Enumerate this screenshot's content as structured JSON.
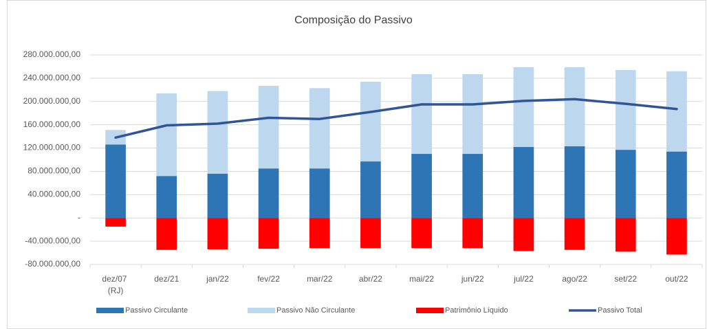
{
  "chart_data": {
    "type": "bar",
    "title": "Composição do Passivo",
    "categories": [
      "dez/07 (RJ)",
      "dez/21",
      "jan/22",
      "fev/22",
      "mar/22",
      "abr/22",
      "mai/22",
      "jun/22",
      "jul/22",
      "ago/22",
      "set/22",
      "out/22"
    ],
    "series": [
      {
        "name": "Passivo Circulante",
        "color": "#2e75b6",
        "type": "bar",
        "values": [
          126000000,
          72000000,
          76000000,
          85000000,
          85000000,
          97000000,
          110000000,
          110000000,
          122000000,
          123000000,
          117000000,
          114000000
        ]
      },
      {
        "name": "Passivo Não Circulante",
        "color": "#bdd7ee",
        "type": "bar",
        "values": [
          25000000,
          142000000,
          142000000,
          142000000,
          138000000,
          137000000,
          137000000,
          137000000,
          137000000,
          136000000,
          137000000,
          138000000
        ]
      },
      {
        "name": "Patrimônio Líquido",
        "color": "#ff0000",
        "type": "bar",
        "values": [
          -15000000,
          -55000000,
          -54000000,
          -53000000,
          -52000000,
          -52000000,
          -52000000,
          -52000000,
          -57000000,
          -55000000,
          -58000000,
          -63000000
        ]
      },
      {
        "name": "Passivo Total",
        "color": "#2f5597",
        "type": "line",
        "values": [
          138000000,
          159000000,
          162000000,
          172000000,
          170000000,
          182000000,
          195000000,
          195000000,
          201000000,
          204000000,
          196000000,
          187000000
        ]
      }
    ],
    "ylim": [
      -80000000,
      280000000
    ],
    "yticks": [
      {
        "value": -80000000,
        "label": "-80.000.000,00"
      },
      {
        "value": -40000000,
        "label": "-40.000.000,00"
      },
      {
        "value": 0,
        "label": "-"
      },
      {
        "value": 40000000,
        "label": "40.000.000,00"
      },
      {
        "value": 80000000,
        "label": "80.000.000,00"
      },
      {
        "value": 120000000,
        "label": "120.000.000,00"
      },
      {
        "value": 160000000,
        "label": "160.000.000,00"
      },
      {
        "value": 200000000,
        "label": "200.000.000,00"
      },
      {
        "value": 240000000,
        "label": "240.000.000,00"
      },
      {
        "value": 280000000,
        "label": "280.000.000,00"
      }
    ],
    "grid": true,
    "legend": "bottom"
  }
}
